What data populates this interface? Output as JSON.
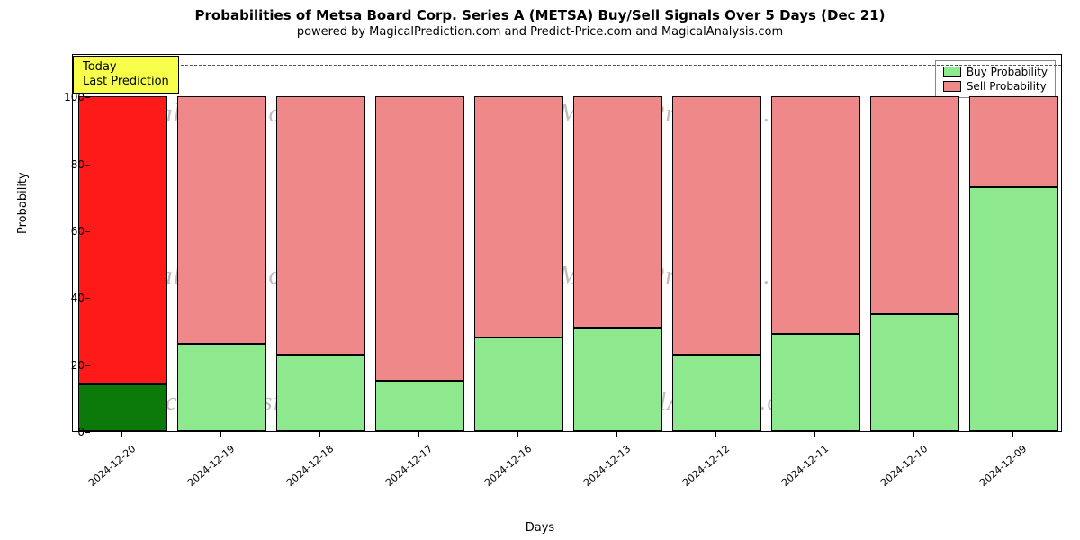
{
  "title": "Probabilities of Metsa Board Corp. Series A (METSA) Buy/Sell Signals Over 5 Days (Dec 21)",
  "subtitle": "powered by MagicalPrediction.com and Predict-Price.com and MagicalAnalysis.com",
  "title_fontsize": 15,
  "subtitle_fontsize": 13,
  "chart": {
    "type": "stacked-bar",
    "background_color": "#ffffff",
    "border_color": "#000000",
    "y_axis": {
      "label": "Probability",
      "label_fontsize": 13,
      "min": 0,
      "max": 113,
      "ticks": [
        0,
        20,
        40,
        60,
        80,
        100
      ],
      "tick_fontsize": 12
    },
    "x_axis": {
      "label": "Days",
      "label_fontsize": 13,
      "tick_fontsize": 11,
      "tick_rotation_deg": -40,
      "categories": [
        "2024-12-20",
        "2024-12-19",
        "2024-12-18",
        "2024-12-17",
        "2024-12-16",
        "2024-12-13",
        "2024-12-12",
        "2024-12-11",
        "2024-12-10",
        "2024-12-09"
      ]
    },
    "reference_line": {
      "y": 110,
      "color": "#555555",
      "dash": "6,5",
      "width": 1
    },
    "bar_width_ratio": 0.9,
    "series": {
      "buy": {
        "label": "Buy Probability",
        "color_default": "#8ee88e",
        "color_today": "#0b7a0b",
        "border": "#000000"
      },
      "sell": {
        "label": "Sell Probability",
        "color_default": "#ef8888",
        "color_today": "#ff1a1a",
        "border": "#000000"
      }
    },
    "data": [
      {
        "date": "2024-12-20",
        "buy": 14,
        "sell": 86,
        "today": true
      },
      {
        "date": "2024-12-19",
        "buy": 26,
        "sell": 74,
        "today": false
      },
      {
        "date": "2024-12-18",
        "buy": 23,
        "sell": 77,
        "today": false
      },
      {
        "date": "2024-12-17",
        "buy": 15,
        "sell": 85,
        "today": false
      },
      {
        "date": "2024-12-16",
        "buy": 28,
        "sell": 72,
        "today": false
      },
      {
        "date": "2024-12-13",
        "buy": 31,
        "sell": 69,
        "today": false
      },
      {
        "date": "2024-12-12",
        "buy": 23,
        "sell": 77,
        "today": false
      },
      {
        "date": "2024-12-11",
        "buy": 29,
        "sell": 71,
        "today": false
      },
      {
        "date": "2024-12-10",
        "buy": 35,
        "sell": 65,
        "today": false
      },
      {
        "date": "2024-12-09",
        "buy": 73,
        "sell": 27,
        "today": false
      }
    ],
    "legend": {
      "position": "top-right",
      "fontsize": 12,
      "items": [
        {
          "swatch": "#8ee88e",
          "label": "Buy Probability"
        },
        {
          "swatch": "#ef8888",
          "label": "Sell Probability"
        }
      ]
    },
    "annotation": {
      "text": "Today\nLast Prediction",
      "bg_color": "#f7ff4a",
      "border_color": "#000000",
      "fontsize": 13,
      "x_index": 0,
      "y": 108
    },
    "watermarks": {
      "text_left": "MagicalPrediction.com",
      "text_mid": "MagicalPrediction.com",
      "text_right": "MagicalAnalysis.com",
      "color": "#bdbdbd",
      "fontsize": 28
    }
  }
}
